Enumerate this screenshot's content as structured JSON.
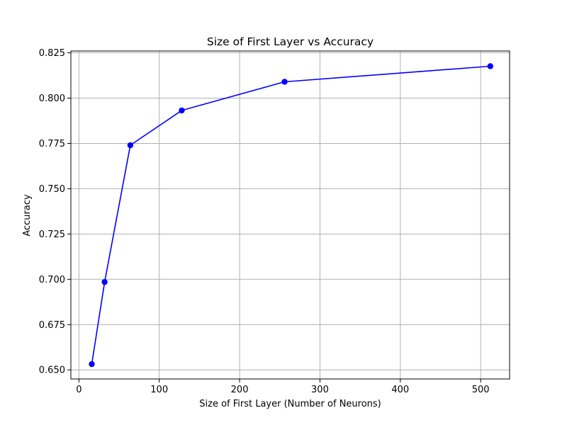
{
  "chart_data": {
    "type": "line",
    "title": "Size of First Layer vs Accuracy",
    "xlabel": "Size of First Layer (Number of Neurons)",
    "ylabel": "Accuracy",
    "x": [
      16,
      32,
      64,
      128,
      256,
      512
    ],
    "series": [
      {
        "values": [
          0.6532,
          0.6985,
          0.774,
          0.7932,
          0.809,
          0.8176
        ]
      }
    ],
    "xlim": [
      -10,
      536
    ],
    "ylim": [
      0.645,
      0.826
    ],
    "xticks": [
      0,
      100,
      200,
      300,
      400,
      500
    ],
    "xtick_labels": [
      "0",
      "100",
      "200",
      "300",
      "400",
      "500"
    ],
    "yticks": [
      0.65,
      0.675,
      0.7,
      0.725,
      0.75,
      0.775,
      0.8,
      0.825
    ],
    "ytick_labels": [
      "0.650",
      "0.675",
      "0.700",
      "0.725",
      "0.750",
      "0.775",
      "0.800",
      "0.825"
    ],
    "grid": true,
    "marker": "circle",
    "colors": {
      "line": "#0000ff",
      "grid": "#b0b0b0",
      "axis": "#000000"
    }
  }
}
